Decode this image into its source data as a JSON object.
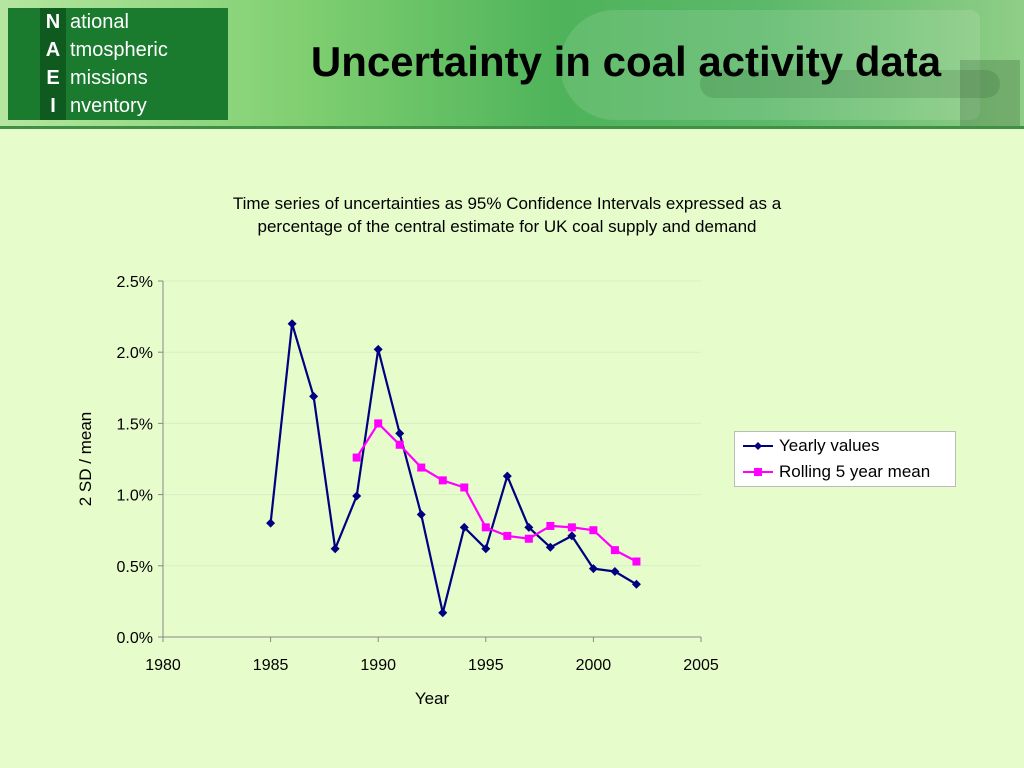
{
  "banner": {
    "logo_rows": [
      {
        "letter": "N",
        "rest": "ational"
      },
      {
        "letter": "A",
        "rest": "tmospheric"
      },
      {
        "letter": "E",
        "rest": "missions"
      },
      {
        "letter": "I",
        "rest": "nventory"
      }
    ]
  },
  "slide": {
    "title": "Uncertainty in coal activity data"
  },
  "chart_data": {
    "type": "line",
    "title_line1": "Time series of uncertainties as 95% Confidence Intervals expressed as a",
    "title_line2": "percentage of the central estimate for UK coal supply and demand",
    "xlabel": "Year",
    "ylabel": "2 SD / mean",
    "xlim": [
      1980,
      2005
    ],
    "xticks": [
      "1980",
      "1985",
      "1990",
      "1995",
      "2000",
      "2005"
    ],
    "ylim": [
      0,
      0.025
    ],
    "yticks": [
      "0.0%",
      "0.5%",
      "1.0%",
      "1.5%",
      "2.0%",
      "2.5%"
    ],
    "grid": true,
    "legend_position": "right",
    "series": [
      {
        "name": "Yearly values",
        "color": "#000080",
        "marker": "diamond",
        "x": [
          1985,
          1986,
          1987,
          1988,
          1989,
          1990,
          1991,
          1992,
          1993,
          1994,
          1995,
          1996,
          1997,
          1998,
          1999,
          2000,
          2001,
          2002
        ],
        "y": [
          0.008,
          0.022,
          0.0169,
          0.0062,
          0.0099,
          0.0202,
          0.0143,
          0.0086,
          0.0017,
          0.0077,
          0.0062,
          0.0113,
          0.0077,
          0.0063,
          0.0071,
          0.0048,
          0.0046,
          0.0037
        ]
      },
      {
        "name": "Rolling 5 year mean",
        "color": "#ff00ff",
        "marker": "square",
        "x": [
          1989,
          1990,
          1991,
          1992,
          1993,
          1994,
          1995,
          1996,
          1997,
          1998,
          1999,
          2000,
          2001,
          2002
        ],
        "y": [
          0.0126,
          0.015,
          0.0135,
          0.0119,
          0.011,
          0.0105,
          0.0077,
          0.0071,
          0.0069,
          0.0078,
          0.0077,
          0.0075,
          0.0061,
          0.0053
        ]
      }
    ]
  }
}
